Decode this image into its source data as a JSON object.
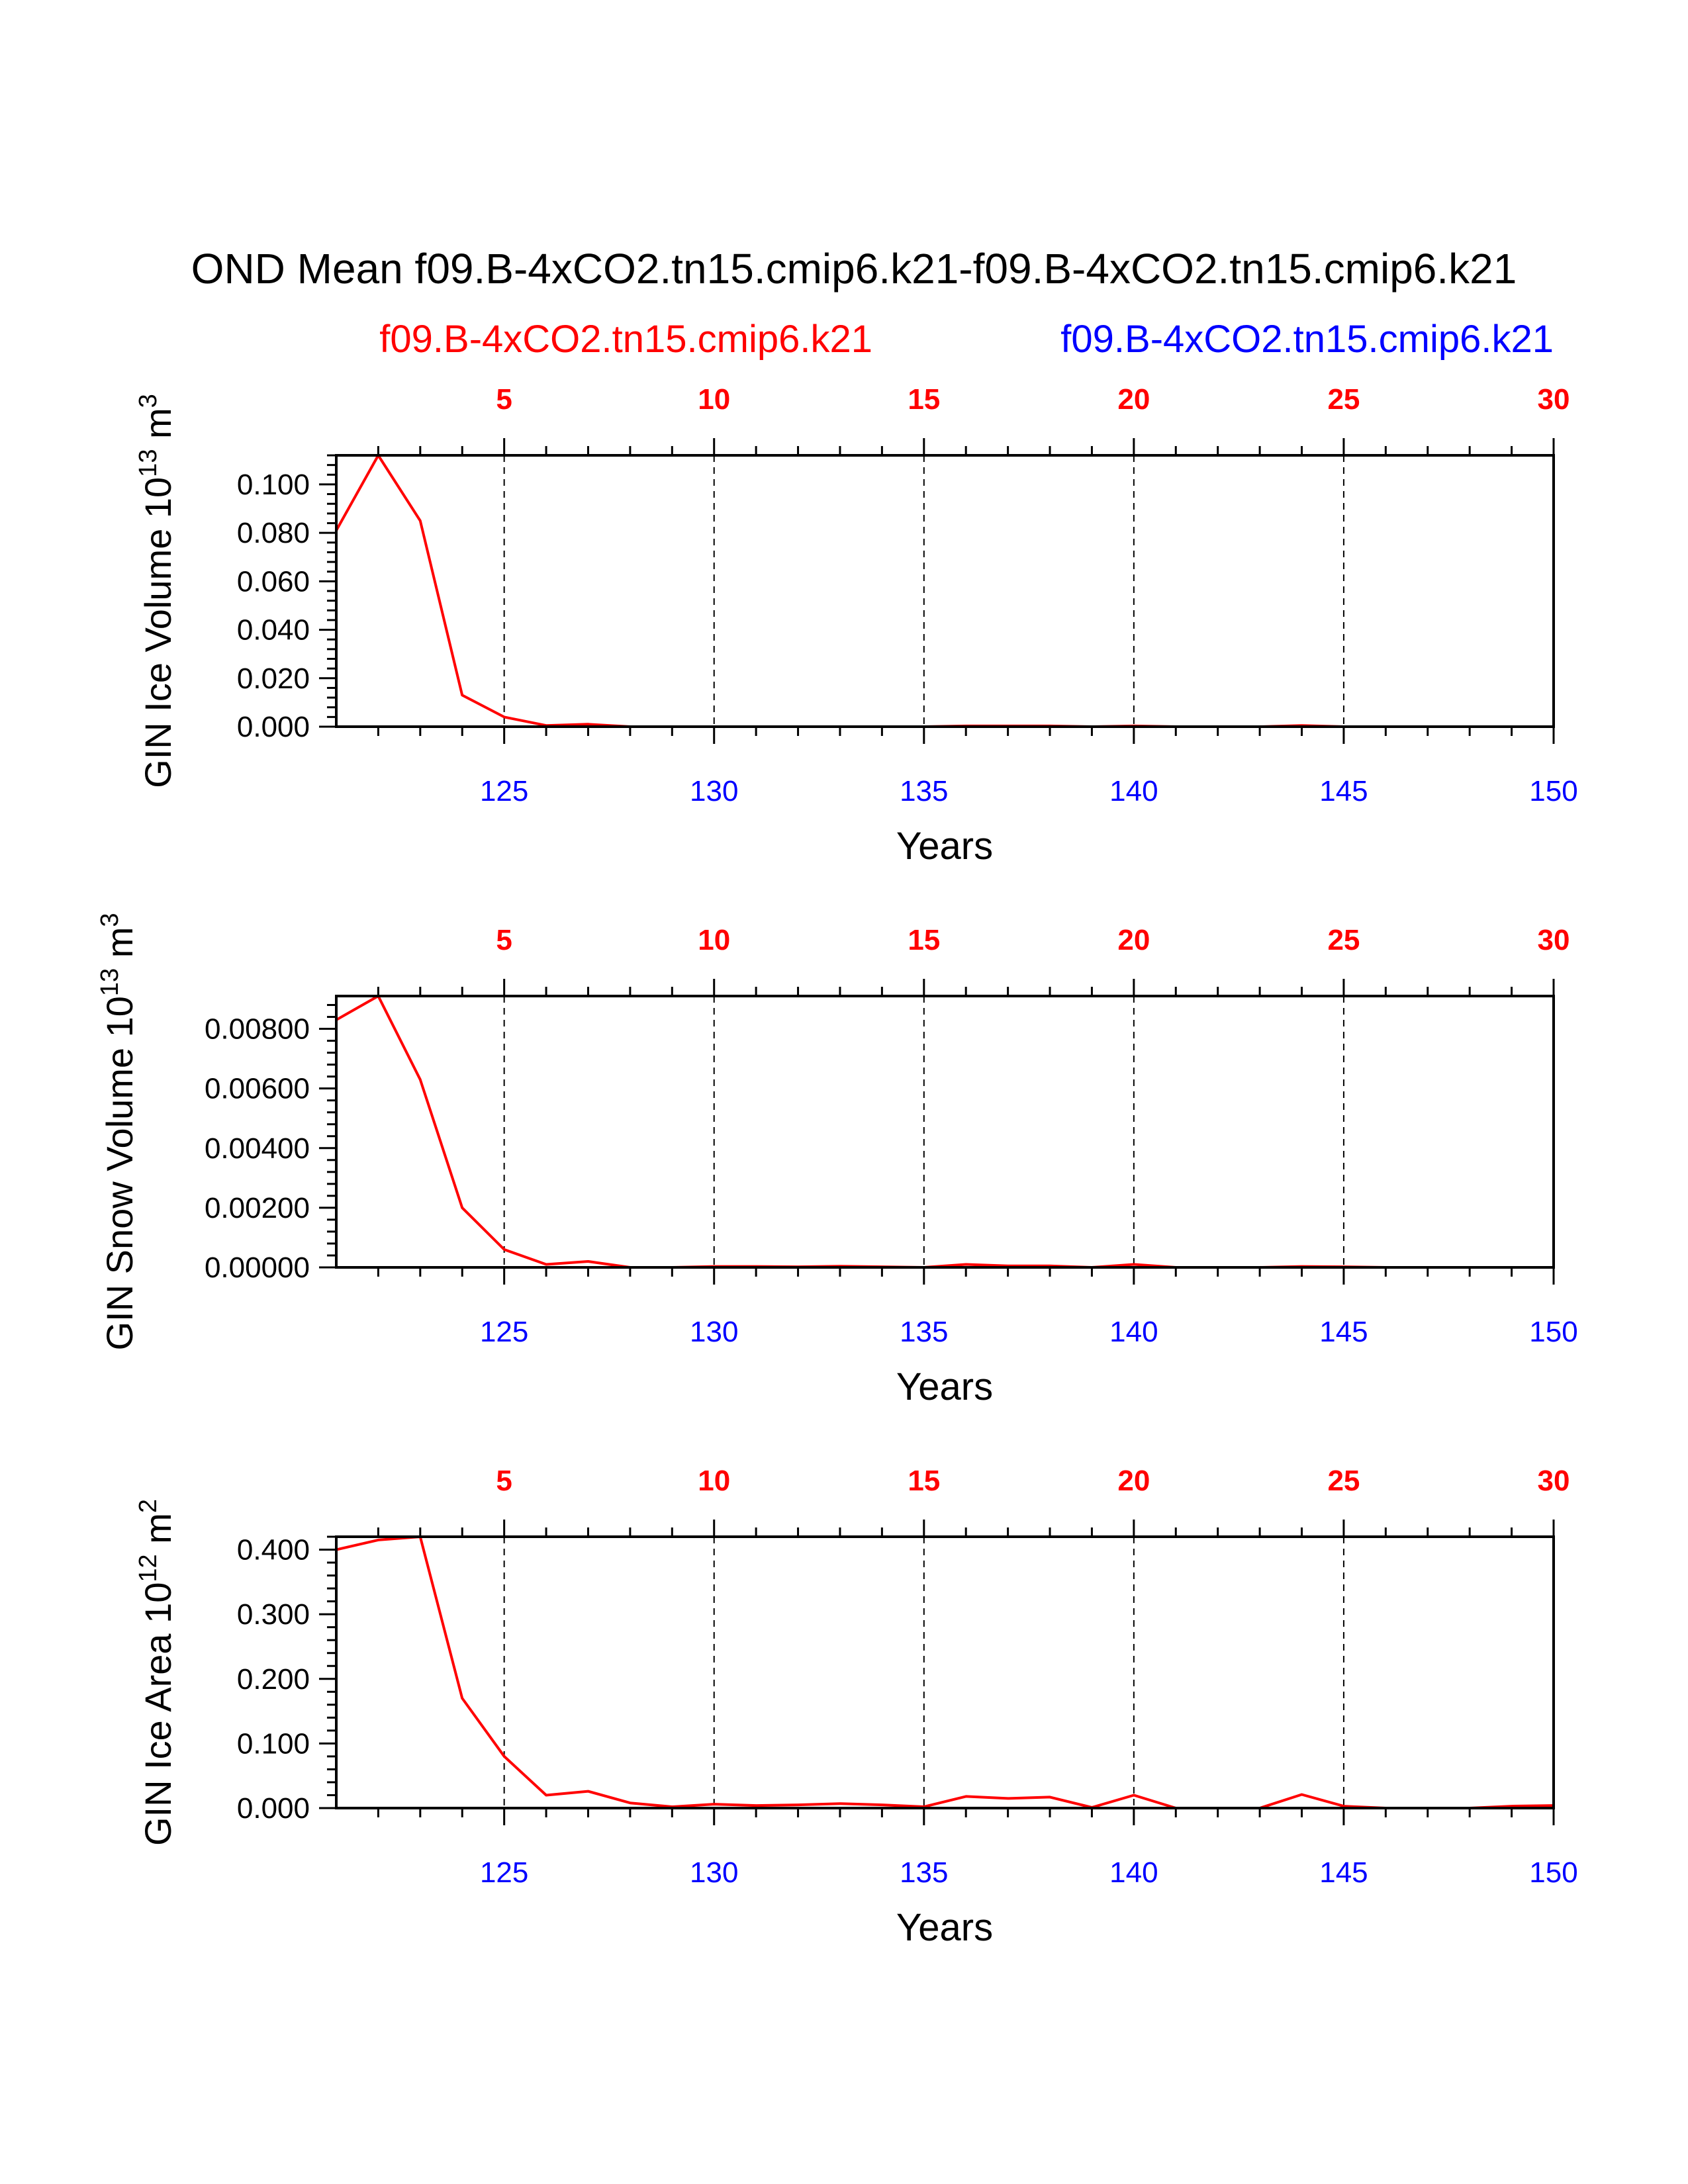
{
  "title": "OND Mean f09.B-4xCO2.tn15.cmip6.k21-f09.B-4xCO2.tn15.cmip6.k21",
  "left_subtitle": "f09.B-4xCO2.tn15.cmip6.k21",
  "right_subtitle": "f09.B-4xCO2.tn15.cmip6.k21",
  "colors": {
    "series": "#ff0000",
    "bottom_axis": "#0000ff",
    "top_axis": "#ff0000",
    "text": "#000000"
  },
  "chart_data": [
    {
      "type": "line",
      "ylabel": {
        "text": "GIN Ice Volume 10",
        "exponent": "13",
        "unit": " m",
        "unit_exponent": "3"
      },
      "xlabel": "Years",
      "x": [
        121,
        122,
        123,
        124,
        125,
        126,
        127,
        128,
        129,
        130,
        131,
        132,
        133,
        134,
        135,
        136,
        137,
        138,
        139,
        140,
        141,
        142,
        143,
        144,
        145,
        146,
        147,
        148,
        149,
        150
      ],
      "series": [
        {
          "name": "f09.B-4xCO2.tn15.cmip6.k21",
          "values": [
            0.081,
            0.112,
            0.085,
            0.013,
            0.004,
            0.0005,
            0.001,
            0,
            0,
            0,
            0,
            0,
            0,
            0,
            0,
            0.0003,
            0.0003,
            0.0003,
            0,
            0.0003,
            0,
            0,
            0,
            0.0005,
            0,
            0,
            0,
            0,
            0,
            0
          ]
        }
      ],
      "ylim": [
        0,
        0.112
      ],
      "xlim": [
        121,
        150
      ],
      "yticks": [
        "0.000",
        "0.020",
        "0.040",
        "0.060",
        "0.080",
        "0.100"
      ],
      "ytick_values": [
        0,
        0.02,
        0.04,
        0.06,
        0.08,
        0.1
      ],
      "xticks_bottom": [
        "125",
        "130",
        "135",
        "140",
        "145",
        "150"
      ],
      "xticks_top": [
        "5",
        "10",
        "15",
        "20",
        "25",
        "30"
      ],
      "xtick_values": [
        125,
        130,
        135,
        140,
        145,
        150
      ],
      "grid": "dashed vertical"
    },
    {
      "type": "line",
      "ylabel": {
        "text": "GIN Snow Volume 10",
        "exponent": "13",
        "unit": " m",
        "unit_exponent": "3"
      },
      "xlabel": "Years",
      "x": [
        121,
        122,
        123,
        124,
        125,
        126,
        127,
        128,
        129,
        130,
        131,
        132,
        133,
        134,
        135,
        136,
        137,
        138,
        139,
        140,
        141,
        142,
        143,
        144,
        145,
        146,
        147,
        148,
        149,
        150
      ],
      "series": [
        {
          "name": "f09.B-4xCO2.tn15.cmip6.k21",
          "values": [
            0.0083,
            0.0091,
            0.0063,
            0.002,
            0.0006,
            0.0001,
            0.0002,
            0,
            0,
            3e-05,
            3e-05,
            2e-05,
            4e-05,
            2e-05,
            0,
            0.0001,
            5e-05,
            5e-05,
            0,
            0.0001,
            0,
            0,
            0,
            3e-05,
            2e-05,
            0,
            0,
            0,
            0,
            0
          ]
        }
      ],
      "ylim": [
        0,
        0.0091
      ],
      "xlim": [
        121,
        150
      ],
      "yticks": [
        "0.00000",
        "0.00200",
        "0.00400",
        "0.00600",
        "0.00800"
      ],
      "ytick_values": [
        0,
        0.002,
        0.004,
        0.006,
        0.008
      ],
      "xticks_bottom": [
        "125",
        "130",
        "135",
        "140",
        "145",
        "150"
      ],
      "xticks_top": [
        "5",
        "10",
        "15",
        "20",
        "25",
        "30"
      ],
      "xtick_values": [
        125,
        130,
        135,
        140,
        145,
        150
      ],
      "grid": "dashed vertical"
    },
    {
      "type": "line",
      "ylabel": {
        "text": "GIN Ice Area 10",
        "exponent": "12",
        "unit": " m",
        "unit_exponent": "2"
      },
      "xlabel": "Years",
      "x": [
        121,
        122,
        123,
        124,
        125,
        126,
        127,
        128,
        129,
        130,
        131,
        132,
        133,
        134,
        135,
        136,
        137,
        138,
        139,
        140,
        141,
        142,
        143,
        144,
        145,
        146,
        147,
        148,
        149,
        150
      ],
      "series": [
        {
          "name": "f09.B-4xCO2.tn15.cmip6.k21",
          "values": [
            0.4,
            0.415,
            0.42,
            0.17,
            0.08,
            0.02,
            0.026,
            0.008,
            0.002,
            0.006,
            0.004,
            0.005,
            0.007,
            0.005,
            0.002,
            0.018,
            0.015,
            0.017,
            0.001,
            0.02,
            0,
            0,
            0,
            0.021,
            0.003,
            0,
            0,
            0,
            0.003,
            0.004
          ]
        }
      ],
      "ylim": [
        0,
        0.42
      ],
      "xlim": [
        121,
        150
      ],
      "yticks": [
        "0.000",
        "0.100",
        "0.200",
        "0.300",
        "0.400"
      ],
      "ytick_values": [
        0,
        0.1,
        0.2,
        0.3,
        0.4
      ],
      "xticks_bottom": [
        "125",
        "130",
        "135",
        "140",
        "145",
        "150"
      ],
      "xticks_top": [
        "5",
        "10",
        "15",
        "20",
        "25",
        "30"
      ],
      "xtick_values": [
        125,
        130,
        135,
        140,
        145,
        150
      ],
      "grid": "dashed vertical"
    }
  ]
}
